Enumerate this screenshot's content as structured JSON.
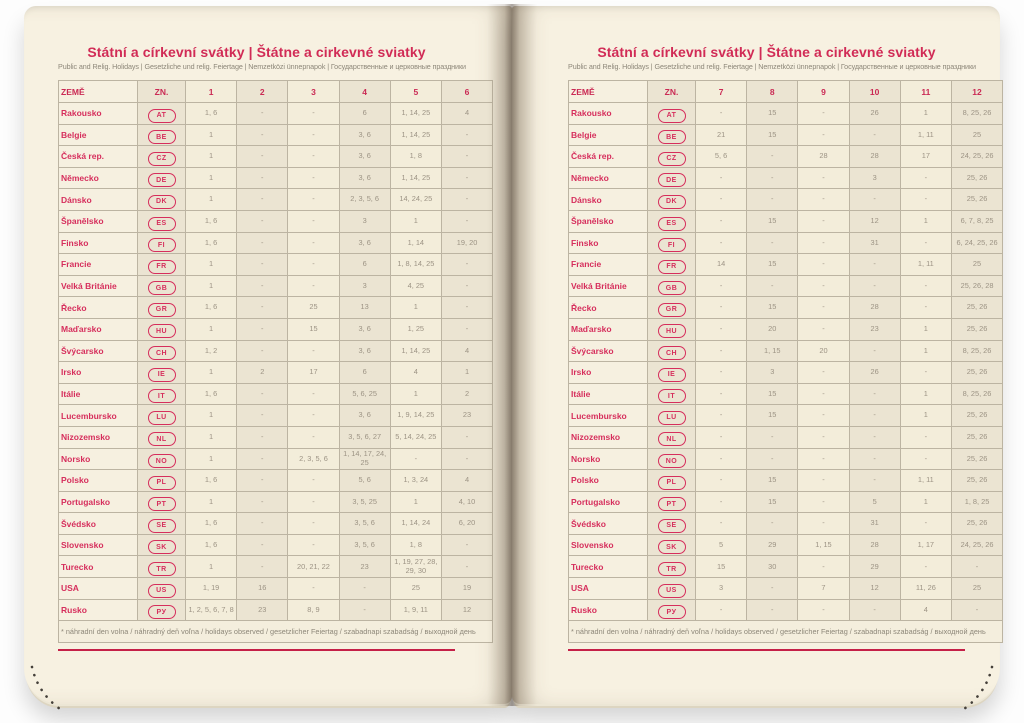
{
  "colors": {
    "accent_red": "#d12b56",
    "rule_red": "#c52047",
    "page_cream": "#f7f1e1",
    "column_tint_dark": "#ebe4d2",
    "column_tint_light": "#f3edda",
    "numbers_gray": "#9c9384"
  },
  "left_page": {
    "title": "Státní a církevní svátky | Štátne a cirkevné sviatky",
    "subtitle": "Public and Relig. Holidays | Gesetzliche und relig. Feiertage | Nemzetközi ünnepnapok | Государственные и церковные праздники",
    "columns": [
      "ZEMĚ",
      "ZN.",
      "1",
      "2",
      "3",
      "4",
      "5",
      "6"
    ],
    "rows": [
      {
        "country": "Rakousko",
        "code": "AT",
        "values": [
          "1, 6",
          "-",
          "-",
          "6",
          "1, 14, 25",
          "4"
        ]
      },
      {
        "country": "Belgie",
        "code": "BE",
        "values": [
          "1",
          "-",
          "-",
          "3, 6",
          "1, 14, 25",
          "-"
        ]
      },
      {
        "country": "Česká rep.",
        "code": "CZ",
        "values": [
          "1",
          "-",
          "-",
          "3, 6",
          "1, 8",
          "-"
        ]
      },
      {
        "country": "Německo",
        "code": "DE",
        "values": [
          "1",
          "-",
          "-",
          "3, 6",
          "1, 14, 25",
          "-"
        ]
      },
      {
        "country": "Dánsko",
        "code": "DK",
        "values": [
          "1",
          "-",
          "-",
          "2, 3, 5, 6",
          "14, 24, 25",
          "-"
        ]
      },
      {
        "country": "Španělsko",
        "code": "ES",
        "values": [
          "1, 6",
          "-",
          "-",
          "3",
          "1",
          "-"
        ]
      },
      {
        "country": "Finsko",
        "code": "FI",
        "values": [
          "1, 6",
          "-",
          "-",
          "3, 6",
          "1, 14",
          "19, 20"
        ]
      },
      {
        "country": "Francie",
        "code": "FR",
        "values": [
          "1",
          "-",
          "-",
          "6",
          "1, 8, 14, 25",
          "-"
        ]
      },
      {
        "country": "Velká Británie",
        "code": "GB",
        "values": [
          "1",
          "-",
          "-",
          "3",
          "4, 25",
          "-"
        ]
      },
      {
        "country": "Řecko",
        "code": "GR",
        "values": [
          "1, 6",
          "-",
          "25",
          "13",
          "1",
          "-"
        ]
      },
      {
        "country": "Maďarsko",
        "code": "HU",
        "values": [
          "1",
          "-",
          "15",
          "3, 6",
          "1, 25",
          "-"
        ]
      },
      {
        "country": "Švýcarsko",
        "code": "CH",
        "values": [
          "1, 2",
          "-",
          "-",
          "3, 6",
          "1, 14, 25",
          "4"
        ]
      },
      {
        "country": "Irsko",
        "code": "IE",
        "values": [
          "1",
          "2",
          "17",
          "6",
          "4",
          "1"
        ]
      },
      {
        "country": "Itálie",
        "code": "IT",
        "values": [
          "1, 6",
          "-",
          "-",
          "5, 6, 25",
          "1",
          "2"
        ]
      },
      {
        "country": "Lucembursko",
        "code": "LU",
        "values": [
          "1",
          "-",
          "-",
          "3, 6",
          "1, 9, 14, 25",
          "23"
        ]
      },
      {
        "country": "Nizozemsko",
        "code": "NL",
        "values": [
          "1",
          "-",
          "-",
          "3, 5, 6, 27",
          "5, 14, 24, 25",
          "-"
        ]
      },
      {
        "country": "Norsko",
        "code": "NO",
        "values": [
          "1",
          "-",
          "2, 3, 5, 6",
          "1, 14, 17, 24, 25",
          "-",
          "-"
        ]
      },
      {
        "country": "Polsko",
        "code": "PL",
        "values": [
          "1, 6",
          "-",
          "-",
          "5, 6",
          "1, 3, 24",
          "4"
        ]
      },
      {
        "country": "Portugalsko",
        "code": "PT",
        "values": [
          "1",
          "-",
          "-",
          "3, 5, 25",
          "1",
          "4, 10"
        ]
      },
      {
        "country": "Švédsko",
        "code": "SE",
        "values": [
          "1, 6",
          "-",
          "-",
          "3, 5, 6",
          "1, 14, 24",
          "6, 20"
        ]
      },
      {
        "country": "Slovensko",
        "code": "SK",
        "values": [
          "1, 6",
          "-",
          "-",
          "3, 5, 6",
          "1, 8",
          "-"
        ]
      },
      {
        "country": "Turecko",
        "code": "TR",
        "values": [
          "1",
          "-",
          "20, 21, 22",
          "23",
          "1, 19, 27, 28, 29, 30",
          "-"
        ]
      },
      {
        "country": "USA",
        "code": "US",
        "values": [
          "1, 19",
          "16",
          "-",
          "-",
          "25",
          "19"
        ]
      },
      {
        "country": "Rusko",
        "code": "РУ",
        "values": [
          "1, 2, 5, 6, 7, 8",
          "23",
          "8, 9",
          "-",
          "1, 9, 11",
          "12"
        ]
      }
    ],
    "footnote": "* náhradní den volna / náhradný deň voľna / holidays observed / gesetzlicher Feiertag / szabadnapi szabadság / выходной день"
  },
  "right_page": {
    "title": "Státní a církevní svátky | Štátne a cirkevné sviatky",
    "subtitle": "Public and Relig. Holidays | Gesetzliche und relig. Feiertage | Nemzetközi ünnepnapok | Государственные и церковные праздники",
    "columns": [
      "ZEMĚ",
      "ZN.",
      "7",
      "8",
      "9",
      "10",
      "11",
      "12"
    ],
    "rows": [
      {
        "country": "Rakousko",
        "code": "AT",
        "values": [
          "-",
          "15",
          "-",
          "26",
          "1",
          "8, 25, 26"
        ]
      },
      {
        "country": "Belgie",
        "code": "BE",
        "values": [
          "21",
          "15",
          "-",
          "-",
          "1, 11",
          "25"
        ]
      },
      {
        "country": "Česká rep.",
        "code": "CZ",
        "values": [
          "5, 6",
          "-",
          "28",
          "28",
          "17",
          "24, 25, 26"
        ]
      },
      {
        "country": "Německo",
        "code": "DE",
        "values": [
          "-",
          "-",
          "-",
          "3",
          "-",
          "25, 26"
        ]
      },
      {
        "country": "Dánsko",
        "code": "DK",
        "values": [
          "-",
          "-",
          "-",
          "-",
          "-",
          "25, 26"
        ]
      },
      {
        "country": "Španělsko",
        "code": "ES",
        "values": [
          "-",
          "15",
          "-",
          "12",
          "1",
          "6, 7, 8, 25"
        ]
      },
      {
        "country": "Finsko",
        "code": "FI",
        "values": [
          "-",
          "-",
          "-",
          "31",
          "-",
          "6, 24, 25, 26"
        ]
      },
      {
        "country": "Francie",
        "code": "FR",
        "values": [
          "14",
          "15",
          "-",
          "-",
          "1, 11",
          "25"
        ]
      },
      {
        "country": "Velká Británie",
        "code": "GB",
        "values": [
          "-",
          "-",
          "-",
          "-",
          "-",
          "25, 26, 28"
        ]
      },
      {
        "country": "Řecko",
        "code": "GR",
        "values": [
          "-",
          "15",
          "-",
          "28",
          "-",
          "25, 26"
        ]
      },
      {
        "country": "Maďarsko",
        "code": "HU",
        "values": [
          "-",
          "20",
          "-",
          "23",
          "1",
          "25, 26"
        ]
      },
      {
        "country": "Švýcarsko",
        "code": "CH",
        "values": [
          "-",
          "1, 15",
          "20",
          "-",
          "1",
          "8, 25, 26"
        ]
      },
      {
        "country": "Irsko",
        "code": "IE",
        "values": [
          "-",
          "3",
          "-",
          "26",
          "-",
          "25, 26"
        ]
      },
      {
        "country": "Itálie",
        "code": "IT",
        "values": [
          "-",
          "15",
          "-",
          "-",
          "1",
          "8, 25, 26"
        ]
      },
      {
        "country": "Lucembursko",
        "code": "LU",
        "values": [
          "-",
          "15",
          "-",
          "-",
          "1",
          "25, 26"
        ]
      },
      {
        "country": "Nizozemsko",
        "code": "NL",
        "values": [
          "-",
          "-",
          "-",
          "-",
          "-",
          "25, 26"
        ]
      },
      {
        "country": "Norsko",
        "code": "NO",
        "values": [
          "-",
          "-",
          "-",
          "-",
          "-",
          "25, 26"
        ]
      },
      {
        "country": "Polsko",
        "code": "PL",
        "values": [
          "-",
          "15",
          "-",
          "-",
          "1, 11",
          "25, 26"
        ]
      },
      {
        "country": "Portugalsko",
        "code": "PT",
        "values": [
          "-",
          "15",
          "-",
          "5",
          "1",
          "1, 8, 25"
        ]
      },
      {
        "country": "Švédsko",
        "code": "SE",
        "values": [
          "-",
          "-",
          "-",
          "31",
          "-",
          "25, 26"
        ]
      },
      {
        "country": "Slovensko",
        "code": "SK",
        "values": [
          "5",
          "29",
          "1, 15",
          "28",
          "1, 17",
          "24, 25, 26"
        ]
      },
      {
        "country": "Turecko",
        "code": "TR",
        "values": [
          "15",
          "30",
          "-",
          "29",
          "-",
          "-"
        ]
      },
      {
        "country": "USA",
        "code": "US",
        "values": [
          "3",
          "-",
          "7",
          "12",
          "11, 26",
          "25"
        ]
      },
      {
        "country": "Rusko",
        "code": "РУ",
        "values": [
          "-",
          "-",
          "-",
          "-",
          "4",
          "-"
        ]
      }
    ],
    "footnote": "* náhradní den volna / náhradný deň voľna / holidays observed / gesetzlicher Feiertag / szabadnapi szabadság / выходной день"
  }
}
